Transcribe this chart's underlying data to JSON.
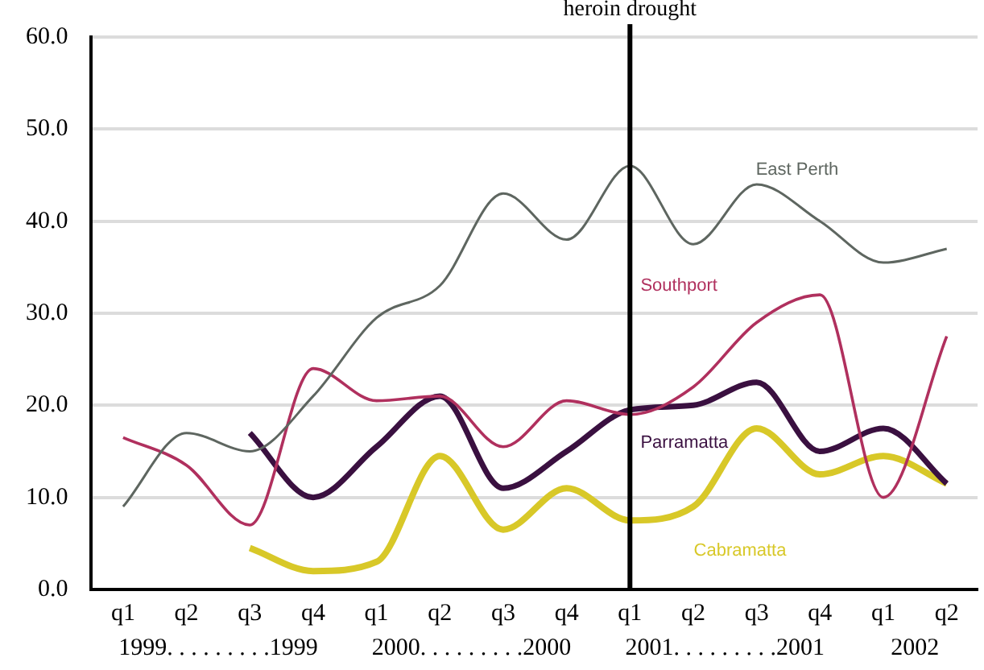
{
  "chart_data": {
    "type": "line",
    "x": [
      "1999-01",
      "1999-04",
      "1999-07",
      "1999-10",
      "2000-01",
      "2000-04",
      "2000-07",
      "2000-10",
      "2001-01",
      "2001-04",
      "2001-07",
      "2001-10",
      "2002-01",
      "2002-04"
    ],
    "xlim": [
      "1998-11-15",
      "2002-05-15"
    ],
    "xticks": [
      {
        "value": "1999-01",
        "label": "q1"
      },
      {
        "value": "1999-04",
        "label": "q2"
      },
      {
        "value": "1999-07",
        "label": "q3"
      },
      {
        "value": "1999-10",
        "label": "q4"
      },
      {
        "value": "2000-01",
        "label": "q1"
      },
      {
        "value": "2000-04",
        "label": "q2"
      },
      {
        "value": "2000-07",
        "label": "q3"
      },
      {
        "value": "2000-10",
        "label": "q4"
      },
      {
        "value": "2001-01",
        "label": "q1"
      },
      {
        "value": "2001-04",
        "label": "q2"
      },
      {
        "value": "2001-07",
        "label": "q3"
      },
      {
        "value": "2001-10",
        "label": "q4"
      },
      {
        "value": "2002-01",
        "label": "q1"
      },
      {
        "value": "2002-04",
        "label": "q2"
      }
    ],
    "series": [
      {
        "name": "East Perth",
        "color": "#5e6660",
        "values": [
          9,
          17,
          15,
          21,
          29.5,
          33,
          43,
          38,
          46,
          37.5,
          44,
          40,
          35.5,
          37
        ]
      },
      {
        "name": "Southport",
        "color": "#b0305e",
        "values": [
          16.5,
          13.5,
          7,
          24,
          20.5,
          21,
          15.5,
          20.5,
          19,
          22,
          29,
          32,
          10,
          27.5
        ]
      },
      {
        "name": "Parramatta",
        "color": "#3a1040",
        "values": [
          null,
          null,
          17,
          10,
          15.5,
          21,
          11,
          15,
          19.5,
          20,
          22.5,
          15,
          17.5,
          11.5
        ]
      },
      {
        "name": "Cabramatta",
        "color": "#d8c828",
        "values": [
          null,
          null,
          4.5,
          2,
          3,
          14.5,
          6.5,
          11,
          7.5,
          9,
          17.5,
          12.5,
          14.5,
          11.5
        ]
      }
    ],
    "ylim": [
      0,
      60
    ],
    "yticks": [
      {
        "value": 0,
        "label": "0.0"
      },
      {
        "value": 10,
        "label": "10.0"
      },
      {
        "value": 20,
        "label": "20.0"
      },
      {
        "value": 30,
        "label": "30.0"
      },
      {
        "value": 40,
        "label": "40.0"
      },
      {
        "value": 50,
        "label": "50.0"
      },
      {
        "value": 60,
        "label": "60.0"
      }
    ],
    "grid": "y",
    "legend": false,
    "marker": "none",
    "ref_lines": [
      {
        "axis": "x",
        "value": "2001-01",
        "label": "heroin drought",
        "color": "#000000"
      }
    ],
    "annotations": [
      "1999. . . . . . . . .1999",
      "2000. . . . . . . . .2000",
      "2001. . . . . . . . .2001",
      "2002"
    ]
  }
}
